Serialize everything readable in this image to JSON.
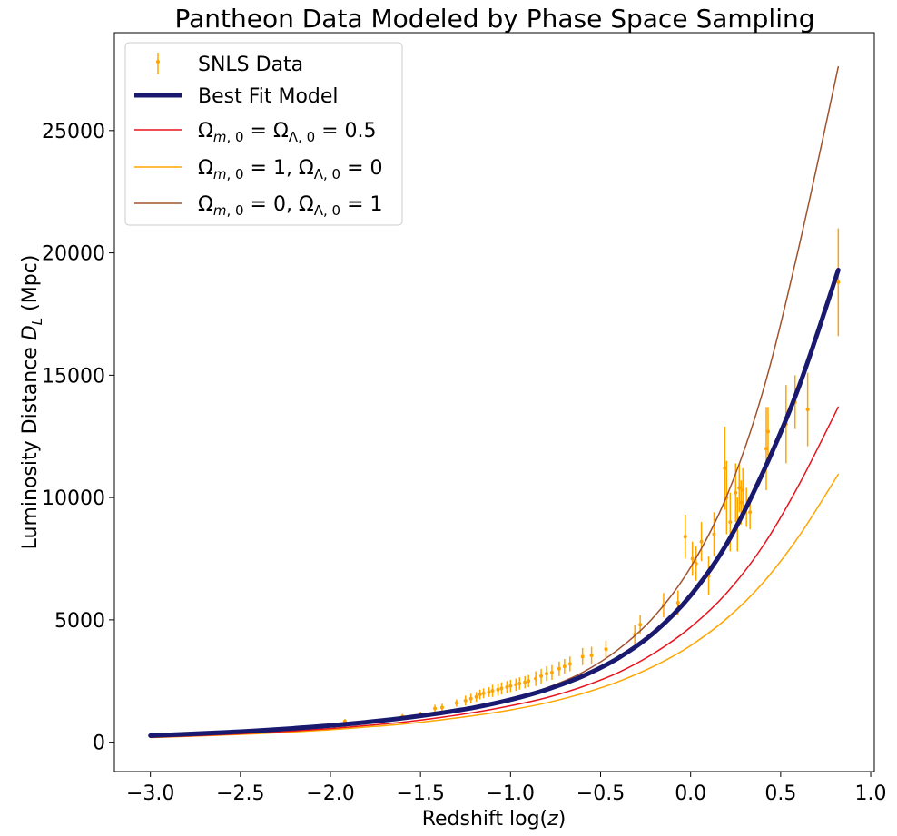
{
  "chart_data": {
    "type": "line",
    "title": "Pantheon Data Modeled by Phase Space Sampling",
    "xlabel": "Redshift log(z)",
    "ylabel": "Luminosity Distance D_L (Mpc)",
    "xlim": [
      -3.2,
      1.02
    ],
    "ylim": [
      -1200,
      29000
    ],
    "xticks": [
      -3.0,
      -2.5,
      -2.0,
      -1.5,
      -1.0,
      -0.5,
      0.0,
      0.5,
      1.0
    ],
    "xtick_labels": [
      "−3.0",
      "−2.5",
      "−2.0",
      "−1.5",
      "−1.0",
      "−0.5",
      "0.0",
      "0.5",
      "1.0"
    ],
    "yticks": [
      0,
      5000,
      10000,
      15000,
      20000,
      25000
    ],
    "ytick_labels": [
      "0",
      "5000",
      "10000",
      "15000",
      "20000",
      "25000"
    ],
    "grid": false,
    "legend_position": "top-left",
    "series": [
      {
        "name": "Best Fit Model",
        "color": "#191970",
        "kind": "line",
        "x": [
          -3.0,
          -2.8,
          -2.6,
          -2.4,
          -2.2,
          -2.0,
          -1.8,
          -1.6,
          -1.4,
          -1.2,
          -1.0,
          -0.8,
          -0.6,
          -0.4,
          -0.2,
          0.0,
          0.2,
          0.4,
          0.6,
          0.82
        ],
        "y": [
          270,
          330,
          395,
          475,
          570,
          680,
          820,
          980,
          1180,
          1420,
          1740,
          2150,
          2700,
          3450,
          4500,
          6000,
          8100,
          11000,
          14500,
          19300
        ]
      },
      {
        "name": "Ωm,0 = ΩΛ,0 = 0.5",
        "color": "#e8131c",
        "kind": "line",
        "x": [
          -3.0,
          -2.8,
          -2.6,
          -2.4,
          -2.2,
          -2.0,
          -1.8,
          -1.6,
          -1.4,
          -1.2,
          -1.0,
          -0.8,
          -0.6,
          -0.4,
          -0.2,
          0.0,
          0.2,
          0.4,
          0.6,
          0.82
        ],
        "y": [
          200,
          250,
          310,
          380,
          460,
          560,
          680,
          820,
          1000,
          1220,
          1490,
          1820,
          2270,
          2850,
          3650,
          4700,
          6100,
          8000,
          10500,
          13700
        ]
      },
      {
        "name": "Ωm,0 = 1, ΩΛ,0 = 0",
        "color": "#ffa500",
        "kind": "line",
        "x": [
          -3.0,
          -2.8,
          -2.6,
          -2.4,
          -2.2,
          -2.0,
          -1.8,
          -1.6,
          -1.4,
          -1.2,
          -1.0,
          -0.8,
          -0.6,
          -0.4,
          -0.2,
          0.0,
          0.2,
          0.4,
          0.6,
          0.82
        ],
        "y": [
          190,
          235,
          290,
          350,
          420,
          510,
          620,
          740,
          900,
          1090,
          1320,
          1610,
          1990,
          2480,
          3120,
          3950,
          5050,
          6500,
          8400,
          10950
        ]
      },
      {
        "name": "Ωm,0 = 0, ΩΛ,0 = 1",
        "color": "#a0522d",
        "kind": "line",
        "x": [
          -3.0,
          -2.8,
          -2.6,
          -2.4,
          -2.2,
          -2.0,
          -1.8,
          -1.6,
          -1.4,
          -1.2,
          -1.0,
          -0.8,
          -0.6,
          -0.4,
          -0.2,
          0.0,
          0.2,
          0.4,
          0.6,
          0.82
        ],
        "y": [
          250,
          310,
          380,
          460,
          550,
          660,
          790,
          950,
          1160,
          1420,
          1760,
          2220,
          2850,
          3800,
          5150,
          7150,
          10050,
          14300,
          20200,
          27600
        ]
      },
      {
        "name": "SNLS Data",
        "color": "#ffa500",
        "kind": "errorbar",
        "x": [
          -1.92,
          -1.6,
          -1.5,
          -1.42,
          -1.38,
          -1.3,
          -1.25,
          -1.22,
          -1.19,
          -1.17,
          -1.15,
          -1.12,
          -1.1,
          -1.07,
          -1.05,
          -1.02,
          -1.0,
          -0.97,
          -0.95,
          -0.92,
          -0.9,
          -0.86,
          -0.83,
          -0.8,
          -0.77,
          -0.73,
          -0.7,
          -0.67,
          -0.6,
          -0.55,
          -0.47,
          -0.31,
          -0.28,
          -0.15,
          -0.07,
          -0.03,
          0.01,
          0.03,
          0.06,
          0.1,
          0.13,
          0.19,
          0.2,
          0.22,
          0.25,
          0.26,
          0.27,
          0.28,
          0.29,
          0.31,
          0.33,
          0.42,
          0.43,
          0.53,
          0.58,
          0.65,
          0.82
        ],
        "y": [
          850,
          1050,
          1150,
          1380,
          1420,
          1600,
          1700,
          1780,
          1850,
          1950,
          2000,
          2050,
          2100,
          2150,
          2200,
          2250,
          2300,
          2350,
          2400,
          2450,
          2500,
          2600,
          2700,
          2800,
          2850,
          3000,
          3100,
          3200,
          3500,
          3550,
          3800,
          4400,
          4800,
          5600,
          5700,
          8400,
          7500,
          7300,
          8200,
          6800,
          8500,
          11200,
          10000,
          9000,
          10200,
          8900,
          10400,
          9800,
          10300,
          9600,
          9400,
          12000,
          12700,
          13000,
          13900,
          13600,
          18800
        ],
        "yerr": [
          100,
          100,
          100,
          150,
          150,
          150,
          200,
          200,
          200,
          200,
          200,
          200,
          250,
          250,
          250,
          250,
          250,
          250,
          250,
          250,
          250,
          300,
          300,
          300,
          300,
          300,
          300,
          300,
          350,
          350,
          350,
          400,
          400,
          500,
          500,
          900,
          700,
          700,
          800,
          800,
          900,
          1700,
          1500,
          1200,
          1200,
          1100,
          1000,
          900,
          900,
          800,
          700,
          1700,
          1000,
          1600,
          1100,
          1500,
          2200
        ]
      }
    ]
  }
}
